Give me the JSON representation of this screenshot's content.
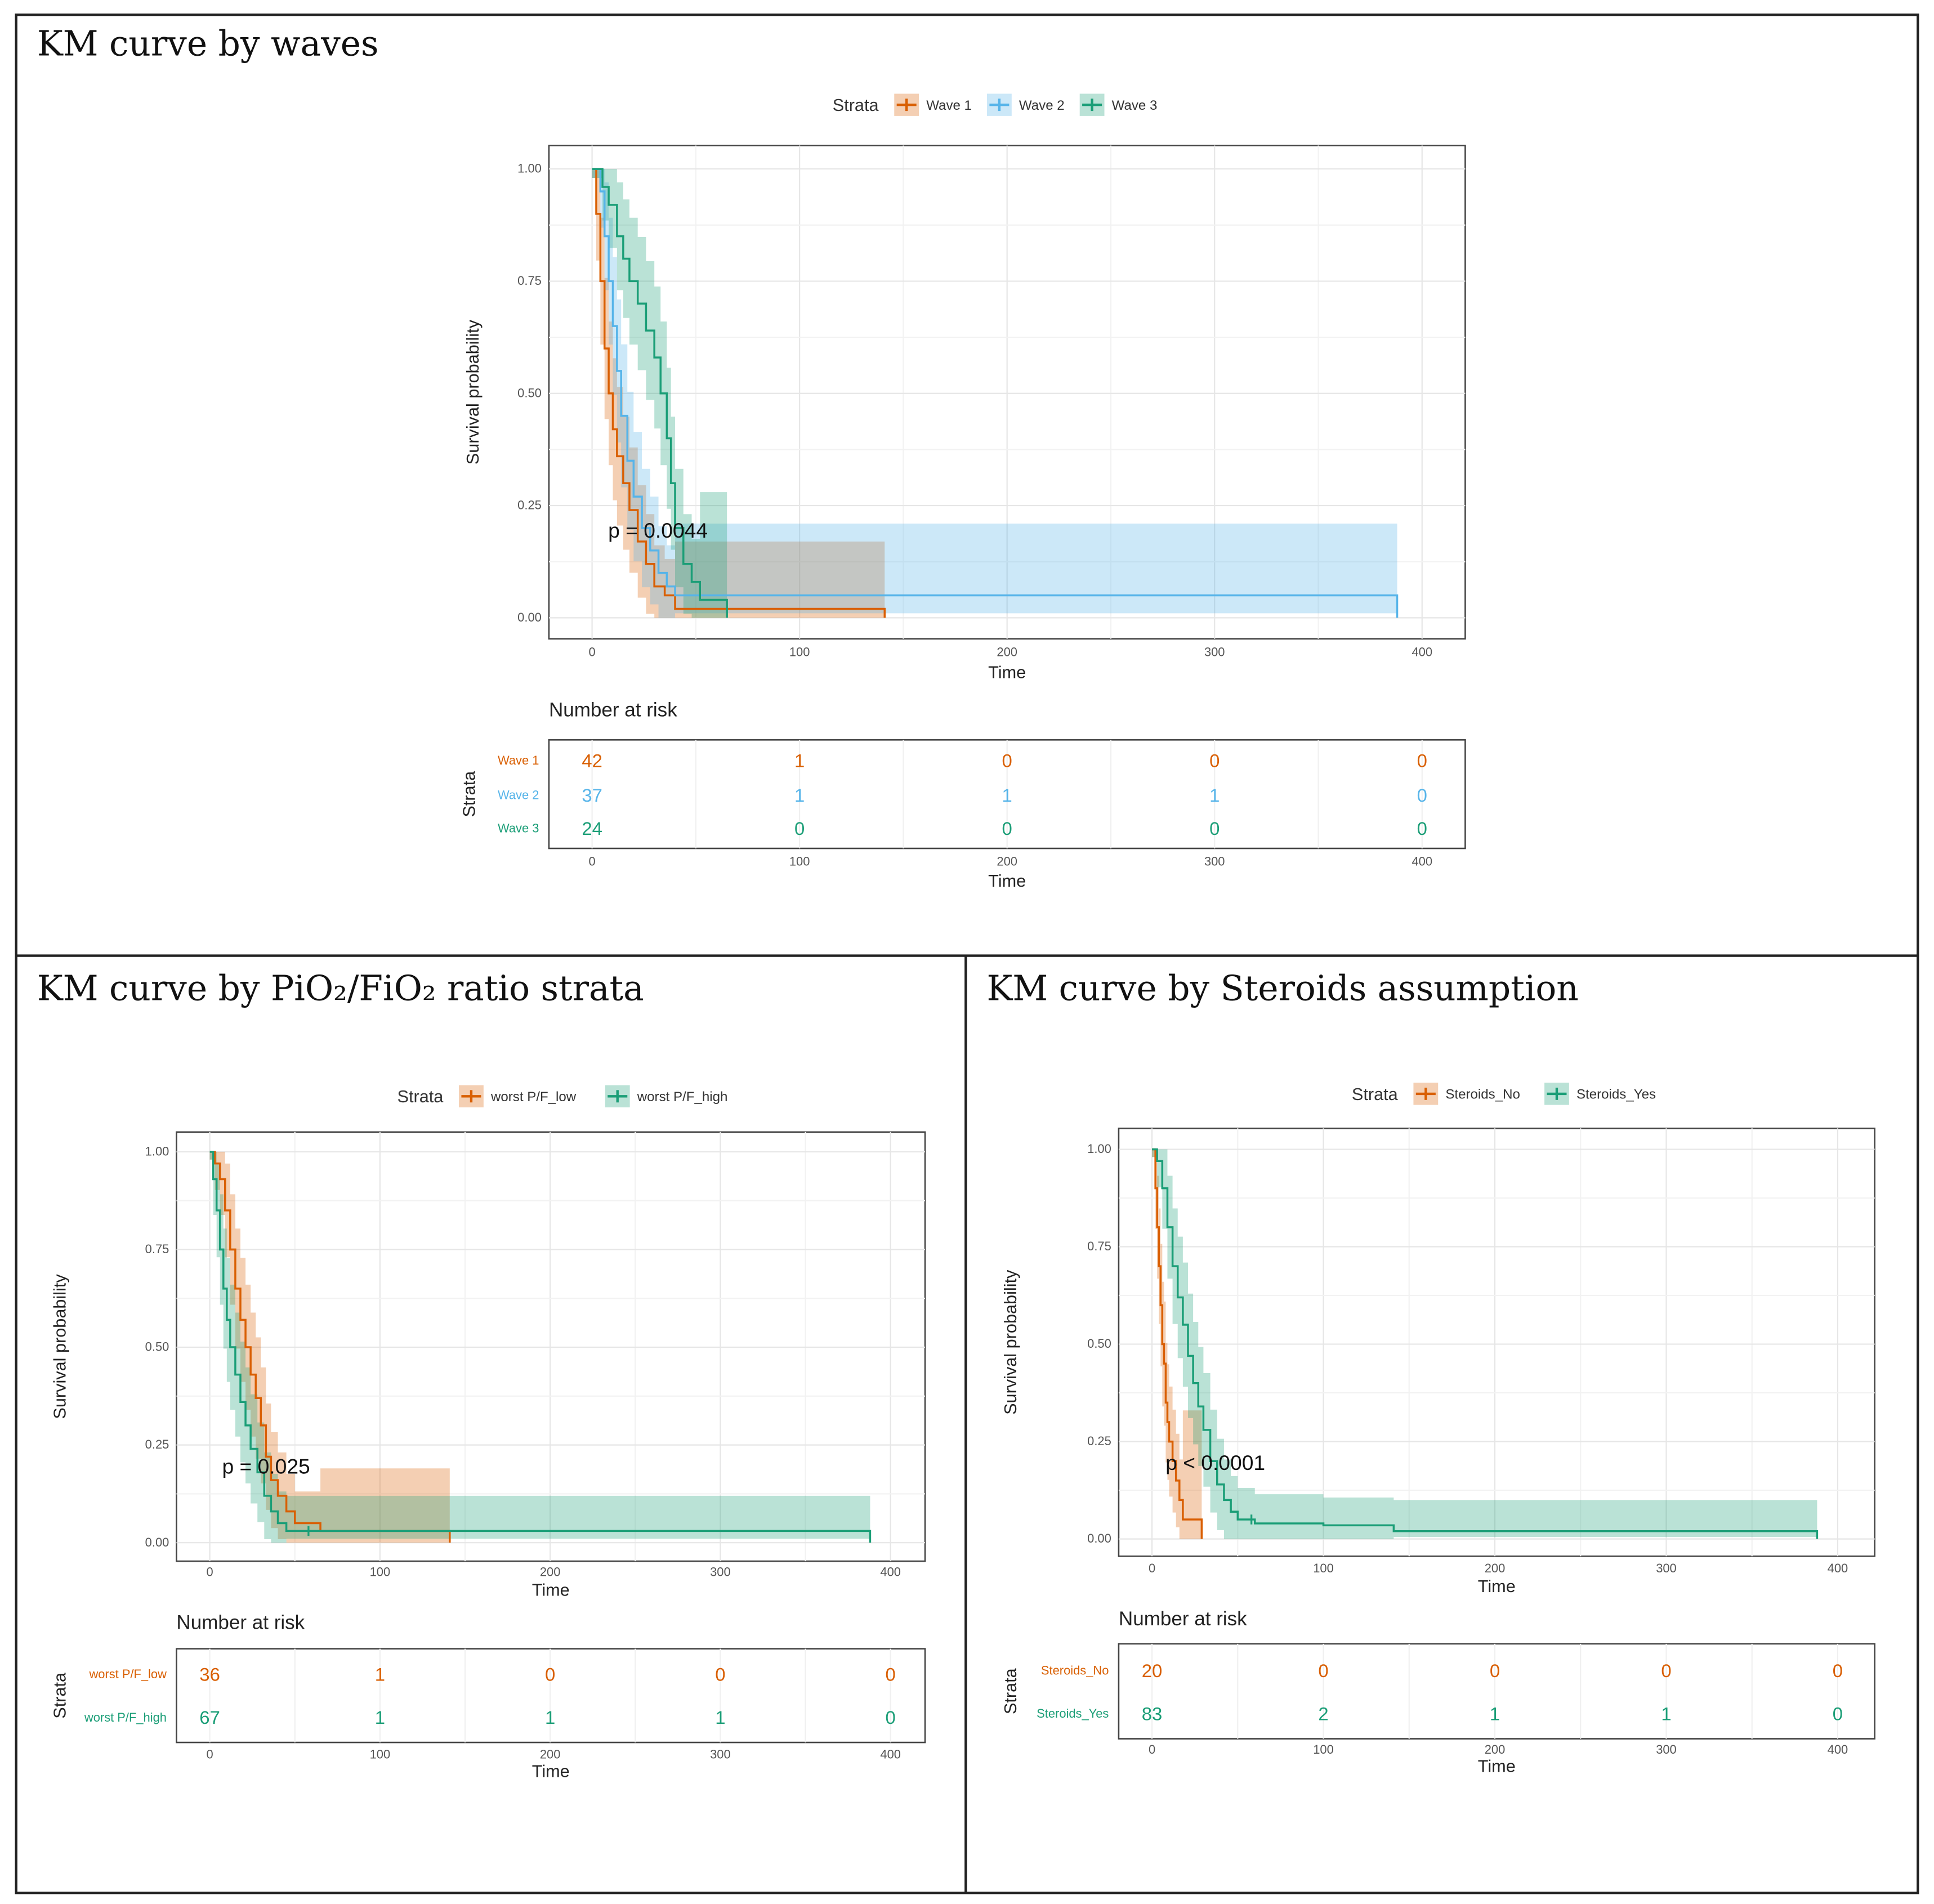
{
  "chart_data": [
    {
      "type": "line",
      "title": "KM curve by waves",
      "legend_title": "Strata",
      "xlabel": "Time",
      "ylabel": "Survival probability",
      "xlim": [
        0,
        400
      ],
      "ylim": [
        0,
        1
      ],
      "xticks": [
        "0",
        "100",
        "200",
        "300",
        "400"
      ],
      "yticks": [
        "0.00",
        "0.25",
        "0.50",
        "0.75",
        "1.00"
      ],
      "grid": true,
      "legend_position": "top",
      "p_value": "p = 0.0044",
      "series": [
        {
          "name": "Wave 1",
          "color": "#D95F02",
          "points": [
            [
              0,
              1
            ],
            [
              2,
              0.9
            ],
            [
              4,
              0.75
            ],
            [
              6,
              0.6
            ],
            [
              8,
              0.5
            ],
            [
              10,
              0.42
            ],
            [
              12,
              0.36
            ],
            [
              15,
              0.3
            ],
            [
              18,
              0.24
            ],
            [
              22,
              0.17
            ],
            [
              26,
              0.12
            ],
            [
              30,
              0.07
            ],
            [
              35,
              0.05
            ],
            [
              40,
              0.02
            ],
            [
              141,
              0.02
            ]
          ],
          "end": 141,
          "tail_ci": [
            0,
            0.17
          ]
        },
        {
          "name": "Wave 2",
          "color": "#56B4E9",
          "points": [
            [
              0,
              1
            ],
            [
              4,
              0.95
            ],
            [
              6,
              0.85
            ],
            [
              8,
              0.75
            ],
            [
              10,
              0.65
            ],
            [
              12,
              0.55
            ],
            [
              14,
              0.45
            ],
            [
              17,
              0.35
            ],
            [
              20,
              0.27
            ],
            [
              24,
              0.2
            ],
            [
              28,
              0.15
            ],
            [
              32,
              0.1
            ],
            [
              36,
              0.07
            ],
            [
              40,
              0.05
            ],
            [
              388,
              0.05
            ]
          ],
          "end": 388,
          "tail_ci": [
            0.01,
            0.21
          ]
        },
        {
          "name": "Wave 3",
          "color": "#1B9E77",
          "points": [
            [
              0,
              1
            ],
            [
              5,
              0.96
            ],
            [
              8,
              0.92
            ],
            [
              12,
              0.85
            ],
            [
              15,
              0.8
            ],
            [
              18,
              0.75
            ],
            [
              22,
              0.7
            ],
            [
              26,
              0.64
            ],
            [
              30,
              0.58
            ],
            [
              33,
              0.5
            ],
            [
              36,
              0.4
            ],
            [
              38,
              0.3
            ],
            [
              40,
              0.2
            ],
            [
              44,
              0.12
            ],
            [
              48,
              0.08
            ],
            [
              52,
              0.04
            ],
            [
              65,
              0.01
            ]
          ],
          "end": 65,
          "tail_ci": [
            0,
            0.28
          ]
        }
      ],
      "risk_table": {
        "title": "Number at risk",
        "ylabel": "Strata",
        "xlabel": "Time",
        "rows": [
          {
            "label": "Wave 1",
            "values": [
              "42",
              "1",
              "0",
              "0",
              "0"
            ]
          },
          {
            "label": "Wave 2",
            "values": [
              "37",
              "1",
              "1",
              "1",
              "0"
            ]
          },
          {
            "label": "Wave 3",
            "values": [
              "24",
              "0",
              "0",
              "0",
              "0"
            ]
          }
        ]
      }
    },
    {
      "type": "line",
      "title": "KM curve by PiO₂/FiO₂ ratio strata",
      "legend_title": "Strata",
      "xlabel": "Time",
      "ylabel": "Survival probability",
      "xlim": [
        0,
        400
      ],
      "ylim": [
        0,
        1
      ],
      "xticks": [
        "0",
        "100",
        "200",
        "300",
        "400"
      ],
      "yticks": [
        "0.00",
        "0.25",
        "0.50",
        "0.75",
        "1.00"
      ],
      "grid": true,
      "legend_position": "top",
      "p_value": "p = 0.025",
      "series": [
        {
          "name": "worst P/F_low",
          "color": "#D95F02",
          "points": [
            [
              0,
              1
            ],
            [
              3,
              0.97
            ],
            [
              6,
              0.93
            ],
            [
              9,
              0.85
            ],
            [
              12,
              0.75
            ],
            [
              15,
              0.65
            ],
            [
              18,
              0.57
            ],
            [
              21,
              0.5
            ],
            [
              24,
              0.43
            ],
            [
              27,
              0.37
            ],
            [
              30,
              0.3
            ],
            [
              33,
              0.22
            ],
            [
              36,
              0.16
            ],
            [
              40,
              0.12
            ],
            [
              45,
              0.08
            ],
            [
              50,
              0.05
            ],
            [
              65,
              0.03
            ],
            [
              141,
              0.03
            ]
          ],
          "end": 141,
          "tail_ci": [
            0,
            0.19
          ]
        },
        {
          "name": "worst P/F_high",
          "color": "#1B9E77",
          "points": [
            [
              0,
              1
            ],
            [
              2,
              0.93
            ],
            [
              4,
              0.85
            ],
            [
              6,
              0.75
            ],
            [
              8,
              0.65
            ],
            [
              10,
              0.57
            ],
            [
              12,
              0.5
            ],
            [
              15,
              0.43
            ],
            [
              18,
              0.36
            ],
            [
              21,
              0.3
            ],
            [
              24,
              0.24
            ],
            [
              28,
              0.18
            ],
            [
              32,
              0.12
            ],
            [
              36,
              0.08
            ],
            [
              40,
              0.05
            ],
            [
              45,
              0.03
            ],
            [
              388,
              0.03
            ]
          ],
          "end": 388,
          "tail_ci": [
            0.01,
            0.12
          ],
          "censor": [
            58
          ]
        }
      ],
      "risk_table": {
        "title": "Number at risk",
        "ylabel": "Strata",
        "xlabel": "Time",
        "rows": [
          {
            "label": "worst P/F_low",
            "values": [
              "36",
              "1",
              "0",
              "0",
              "0"
            ]
          },
          {
            "label": "worst P/F_high",
            "values": [
              "67",
              "1",
              "1",
              "1",
              "0"
            ]
          }
        ]
      }
    },
    {
      "type": "line",
      "title": "KM curve by Steroids assumption",
      "legend_title": "Strata",
      "xlabel": "Time",
      "ylabel": "Survival probability",
      "xlim": [
        0,
        400
      ],
      "ylim": [
        0,
        1
      ],
      "xticks": [
        "0",
        "100",
        "200",
        "300",
        "400"
      ],
      "yticks": [
        "0.00",
        "0.25",
        "0.50",
        "0.75",
        "1.00"
      ],
      "grid": true,
      "legend_position": "top",
      "p_value": "p < 0.0001",
      "series": [
        {
          "name": "Steroids_No",
          "color": "#D95F02",
          "points": [
            [
              0,
              1
            ],
            [
              2,
              0.9
            ],
            [
              3,
              0.8
            ],
            [
              4,
              0.7
            ],
            [
              5,
              0.6
            ],
            [
              6,
              0.5
            ],
            [
              7,
              0.45
            ],
            [
              8,
              0.35
            ],
            [
              9,
              0.3
            ],
            [
              10,
              0.25
            ],
            [
              12,
              0.2
            ],
            [
              14,
              0.15
            ],
            [
              16,
              0.1
            ],
            [
              18,
              0.05
            ],
            [
              29,
              0.05
            ]
          ],
          "end": 29,
          "tail_ci": [
            0,
            0.33
          ]
        },
        {
          "name": "Steroids_Yes",
          "color": "#1B9E77",
          "points": [
            [
              0,
              1
            ],
            [
              3,
              0.97
            ],
            [
              6,
              0.9
            ],
            [
              9,
              0.8
            ],
            [
              12,
              0.7
            ],
            [
              15,
              0.62
            ],
            [
              18,
              0.55
            ],
            [
              21,
              0.47
            ],
            [
              24,
              0.4
            ],
            [
              27,
              0.34
            ],
            [
              30,
              0.28
            ],
            [
              34,
              0.2
            ],
            [
              38,
              0.14
            ],
            [
              42,
              0.1
            ],
            [
              46,
              0.07
            ],
            [
              50,
              0.05
            ],
            [
              60,
              0.04
            ],
            [
              100,
              0.035
            ],
            [
              141,
              0.02
            ],
            [
              388,
              0.02
            ]
          ],
          "end": 388,
          "tail_ci": [
            0.005,
            0.1
          ],
          "censor": [
            58
          ]
        }
      ],
      "risk_table": {
        "title": "Number at risk",
        "ylabel": "Strata",
        "xlabel": "Time",
        "rows": [
          {
            "label": "Steroids_No",
            "values": [
              "20",
              "0",
              "0",
              "0",
              "0"
            ]
          },
          {
            "label": "Steroids_Yes",
            "values": [
              "83",
              "2",
              "1",
              "1",
              "0"
            ]
          }
        ]
      }
    }
  ]
}
